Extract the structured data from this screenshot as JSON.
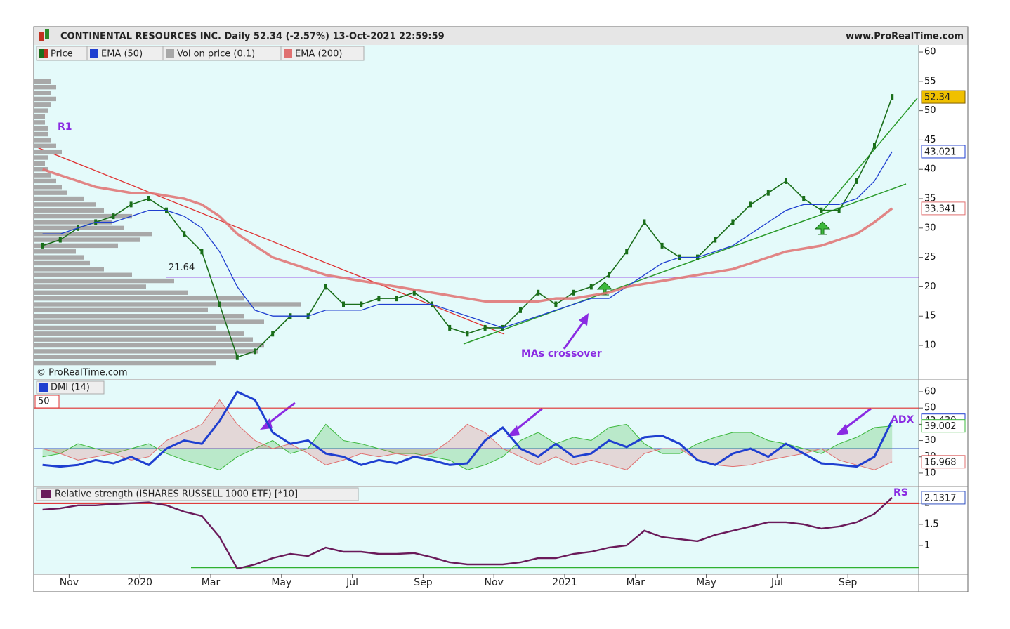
{
  "header": {
    "title": "CONTINENTAL RESOURCES INC. Daily 52.34 (-2.57%) 13-Oct-2021 22:59:59",
    "site": "www.ProRealTime.com"
  },
  "chart_data": [
    {
      "type": "line",
      "watermark": "© ProRealTime.com",
      "ylim": [
        4.26,
        61.2
      ],
      "yticks": [
        10,
        15,
        20,
        25,
        30,
        35,
        40,
        45,
        50,
        55,
        60
      ],
      "hline": 21.64,
      "hline_color": "#8a2be2",
      "annotations": [
        "R1",
        "MAs crossover"
      ],
      "series": [
        {
          "name": "Price",
          "color": "#1a6e1a",
          "values": [
            27,
            28,
            30,
            31,
            32,
            34,
            35,
            33,
            29,
            26,
            17,
            8,
            9,
            12,
            15,
            15,
            20,
            17,
            17,
            18,
            18,
            19,
            17,
            13,
            12,
            13,
            13,
            16,
            19,
            17,
            19,
            20,
            22,
            26,
            31,
            27,
            25,
            25,
            28,
            31,
            34,
            36,
            38,
            35,
            33,
            33,
            38,
            44,
            52.34,
            null
          ]
        },
        {
          "name": "EMA (50)",
          "color": "#1f3fd0",
          "values": [
            29,
            29,
            30,
            31,
            31,
            32,
            33,
            33,
            32,
            30,
            26,
            20,
            16,
            15,
            15,
            15,
            16,
            16,
            16,
            17,
            17,
            17,
            17,
            16,
            15,
            14,
            13,
            14,
            15,
            16,
            17,
            18,
            18,
            20,
            22,
            24,
            25,
            25,
            26,
            27,
            29,
            31,
            33,
            34,
            34,
            34,
            35,
            38,
            43.021,
            null
          ]
        },
        {
          "name": "EMA (200)",
          "color": "#e07070",
          "values": [
            40,
            39,
            38,
            37,
            36.5,
            36,
            36,
            35.5,
            35,
            34,
            32,
            29,
            27,
            25,
            24,
            23,
            22,
            21.5,
            21,
            20.5,
            20,
            19.5,
            19,
            18.5,
            18,
            17.5,
            17.5,
            17.5,
            17.5,
            18,
            18,
            18.5,
            19,
            20,
            20.5,
            21,
            21.5,
            22,
            22.5,
            23,
            24,
            25,
            26,
            26.5,
            27,
            28,
            29,
            31,
            33.341,
            null
          ]
        }
      ],
      "volume_profile": {
        "name": "Vol on price (0.1)",
        "color": "#a8a8a8",
        "bins": [
          6.5,
          7.5,
          8.5,
          9.5,
          10.5,
          11.5,
          12.5,
          13.5,
          14.5,
          15.5,
          16.5,
          17.5,
          18.5,
          19.5,
          20.5,
          21.5,
          22.5,
          23.5,
          24.5,
          25.5,
          26.5,
          27.5,
          28.5,
          29.5,
          30.5,
          31.5,
          32.5,
          33.5,
          34.5,
          35.5,
          36.5,
          37.5,
          38.5,
          39.5,
          40.5,
          41.5,
          42.5,
          43.5,
          44.5,
          45.5,
          46.5,
          47.5,
          48.5,
          49.5,
          50.5,
          51.5,
          52.5,
          53.5,
          54.5,
          55.5
        ],
        "values": [
          65,
          72,
          80,
          82,
          78,
          75,
          65,
          82,
          75,
          62,
          95,
          75,
          55,
          40,
          50,
          35,
          25,
          20,
          18,
          15,
          30,
          38,
          42,
          32,
          28,
          35,
          25,
          22,
          18,
          12,
          10,
          8,
          6,
          5,
          4,
          5,
          10,
          8,
          6,
          5,
          5,
          4,
          4,
          5,
          6,
          8,
          6,
          8,
          6
        ]
      }
    },
    {
      "type": "line",
      "title": "DMI (14)",
      "ylim": [
        2.2,
        66.9
      ],
      "yticks": [
        10,
        20,
        30,
        40,
        50,
        60
      ],
      "levels": [
        {
          "value": 50,
          "color": "#e03030"
        },
        {
          "value": 25,
          "color": "#3050c0"
        }
      ],
      "annotations": [
        "ADX"
      ],
      "series": [
        {
          "color": "#3cb83c",
          "fill": true,
          "values": [
            20,
            22,
            28,
            25,
            22,
            25,
            28,
            22,
            18,
            15,
            12,
            20,
            25,
            30,
            22,
            25,
            40,
            30,
            28,
            25,
            22,
            22,
            20,
            18,
            12,
            15,
            20,
            30,
            35,
            28,
            32,
            30,
            38,
            40,
            28,
            22,
            22,
            28,
            32,
            35,
            35,
            30,
            28,
            25,
            22,
            28,
            32,
            38,
            39.002,
            null
          ]
        },
        {
          "color": "#e07070",
          "fill": true,
          "values": [
            25,
            22,
            18,
            20,
            22,
            18,
            20,
            30,
            35,
            40,
            55,
            40,
            30,
            25,
            28,
            22,
            15,
            18,
            22,
            20,
            22,
            20,
            22,
            30,
            40,
            35,
            25,
            20,
            15,
            20,
            15,
            18,
            15,
            12,
            22,
            25,
            25,
            18,
            15,
            14,
            15,
            18,
            20,
            22,
            25,
            18,
            15,
            12,
            16.968,
            null
          ]
        },
        {
          "color": "#1f3fd0",
          "width": 3,
          "values": [
            15,
            14,
            15,
            18,
            16,
            20,
            15,
            25,
            30,
            28,
            42,
            60,
            55,
            35,
            28,
            30,
            22,
            20,
            15,
            18,
            16,
            20,
            18,
            15,
            16,
            30,
            38,
            25,
            20,
            28,
            20,
            22,
            30,
            26,
            32,
            33,
            28,
            18,
            15,
            22,
            25,
            20,
            28,
            22,
            16,
            15,
            14,
            20,
            42.439,
            null
          ]
        }
      ]
    },
    {
      "type": "line",
      "title": "Relative strength (ISHARES RUSSELL 1000 ETF) [*10]",
      "ylim": [
        0.317,
        2.38
      ],
      "yticks": [
        1,
        1.5,
        2
      ],
      "levels": [
        {
          "value": 2,
          "color": "#e02020"
        },
        {
          "value": 0.48,
          "color": "#30b030"
        }
      ],
      "annotations": [
        "RS"
      ],
      "categories": [
        null,
        null,
        "Nov",
        null,
        null,
        null,
        "2020",
        null,
        null,
        null,
        "Mar",
        null,
        null,
        null,
        "May",
        null,
        null,
        null,
        "Jul",
        null,
        null,
        null,
        "Sep",
        null,
        null,
        null,
        "Nov",
        null,
        null,
        null,
        "2021",
        null,
        null,
        null,
        "Mar",
        null,
        null,
        null,
        "May",
        null,
        null,
        null,
        "Jul",
        null,
        null,
        null,
        "Sep",
        null,
        null,
        null
      ],
      "series": [
        {
          "color": "#6a1a5a",
          "values": [
            1.85,
            1.88,
            1.95,
            1.95,
            1.98,
            2.0,
            2.02,
            1.95,
            1.8,
            1.7,
            1.2,
            0.45,
            0.55,
            0.7,
            0.8,
            0.75,
            0.95,
            0.85,
            0.85,
            0.8,
            0.8,
            0.82,
            0.72,
            0.6,
            0.55,
            0.55,
            0.55,
            0.6,
            0.7,
            0.7,
            0.8,
            0.85,
            0.95,
            1.0,
            1.35,
            1.2,
            1.15,
            1.1,
            1.25,
            1.35,
            1.45,
            1.55,
            1.55,
            1.5,
            1.4,
            1.45,
            1.55,
            1.75,
            2.1317,
            null
          ]
        }
      ]
    }
  ]
}
